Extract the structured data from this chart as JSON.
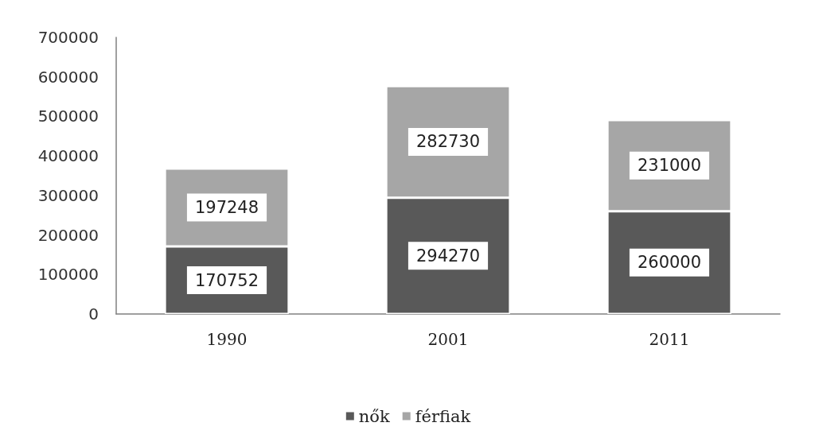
{
  "chart_data": {
    "type": "bar",
    "stacked": true,
    "categories": [
      "1990",
      "2001",
      "2011"
    ],
    "series": [
      {
        "name": "nők",
        "color": "#595959",
        "values": [
          170752,
          294270,
          260000
        ]
      },
      {
        "name": "férfiak",
        "color": "#a6a6a6",
        "values": [
          197248,
          282730,
          231000
        ]
      }
    ],
    "ylim": [
      0,
      700000
    ],
    "yticks": [
      0,
      100000,
      200000,
      300000,
      400000,
      500000,
      600000,
      700000
    ],
    "grid": false,
    "legend": "bottom",
    "data_labels": true
  }
}
